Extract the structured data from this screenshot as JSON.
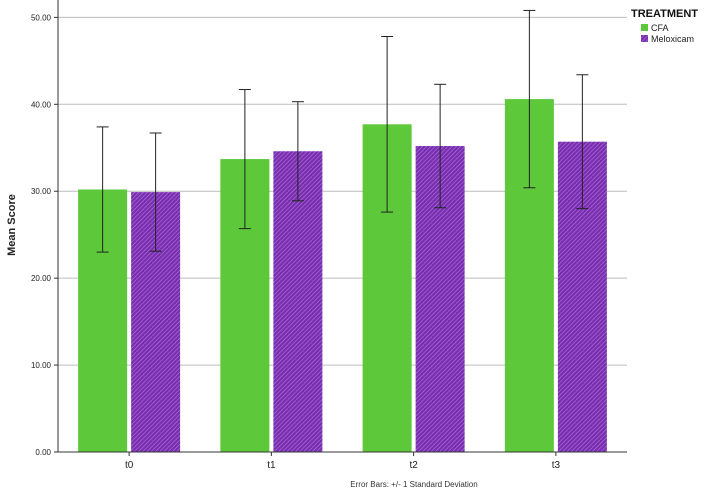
{
  "chart_data": {
    "type": "bar",
    "categories": [
      "t0",
      "t1",
      "t2",
      "t3"
    ],
    "series": [
      {
        "name": "CFA",
        "values": [
          30.2,
          33.7,
          37.7,
          40.6
        ],
        "sd": [
          7.2,
          8.0,
          10.1,
          10.2
        ],
        "color": "#5cc83a"
      },
      {
        "name": "Meloxicam",
        "values": [
          29.9,
          34.6,
          35.2,
          35.7
        ],
        "sd": [
          6.8,
          5.7,
          7.1,
          7.7
        ],
        "color": "#7a2fb0"
      }
    ],
    "ylabel": "Mean Score",
    "xlabel": "",
    "ylim": [
      0,
      52
    ],
    "yticks": [
      0,
      10,
      20,
      30,
      40,
      50
    ],
    "ytick_labels": [
      "0.00",
      "10.00",
      "20.00",
      "30.00",
      "40.00",
      "50.00"
    ],
    "legend_title": "TREATMENT",
    "legend_position": "top-right",
    "grid": true,
    "footnote": "Error Bars: +/- 1 Standard Deviation"
  }
}
